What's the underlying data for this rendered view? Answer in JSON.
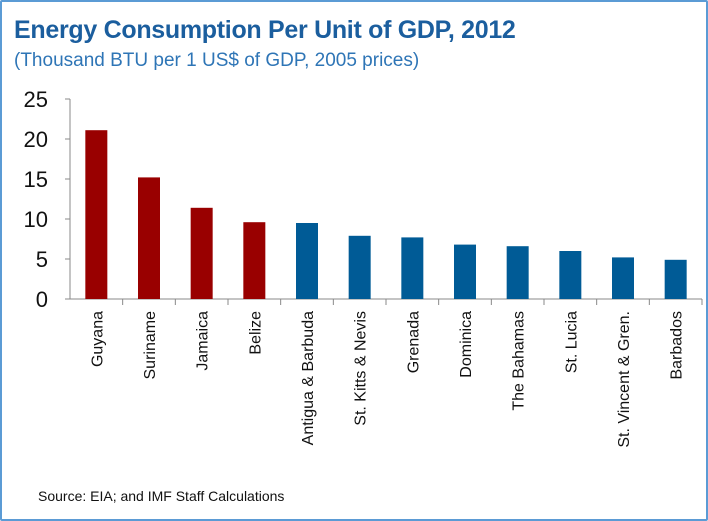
{
  "chart_data": {
    "type": "bar",
    "title": "Energy Consumption Per Unit of GDP, 2012",
    "subtitle": "(Thousand BTU per 1 US$ of GDP, 2005 prices)",
    "xlabel": "",
    "ylabel": "",
    "ylim": [
      0,
      25
    ],
    "yticks": [
      0,
      5,
      10,
      15,
      20,
      25
    ],
    "grid": false,
    "categories": [
      "Guyana",
      "Suriname",
      "Jamaica",
      "Belize",
      "Antigua & Barbuda",
      "St. Kitts & Nevis",
      "Grenada",
      "Dominica",
      "The Bahamas",
      "St. Lucia",
      "St. Vincent & Gren.",
      "Barbados"
    ],
    "values": [
      21.1,
      15.2,
      11.4,
      9.6,
      9.5,
      7.9,
      7.7,
      6.8,
      6.6,
      6.0,
      5.2,
      4.9
    ],
    "bar_colors": [
      "#990000",
      "#990000",
      "#990000",
      "#990000",
      "#005b96",
      "#005b96",
      "#005b96",
      "#005b96",
      "#005b96",
      "#005b96",
      "#005b96",
      "#005b96"
    ],
    "source": "Source: EIA; and  IMF Staff Calculations"
  }
}
